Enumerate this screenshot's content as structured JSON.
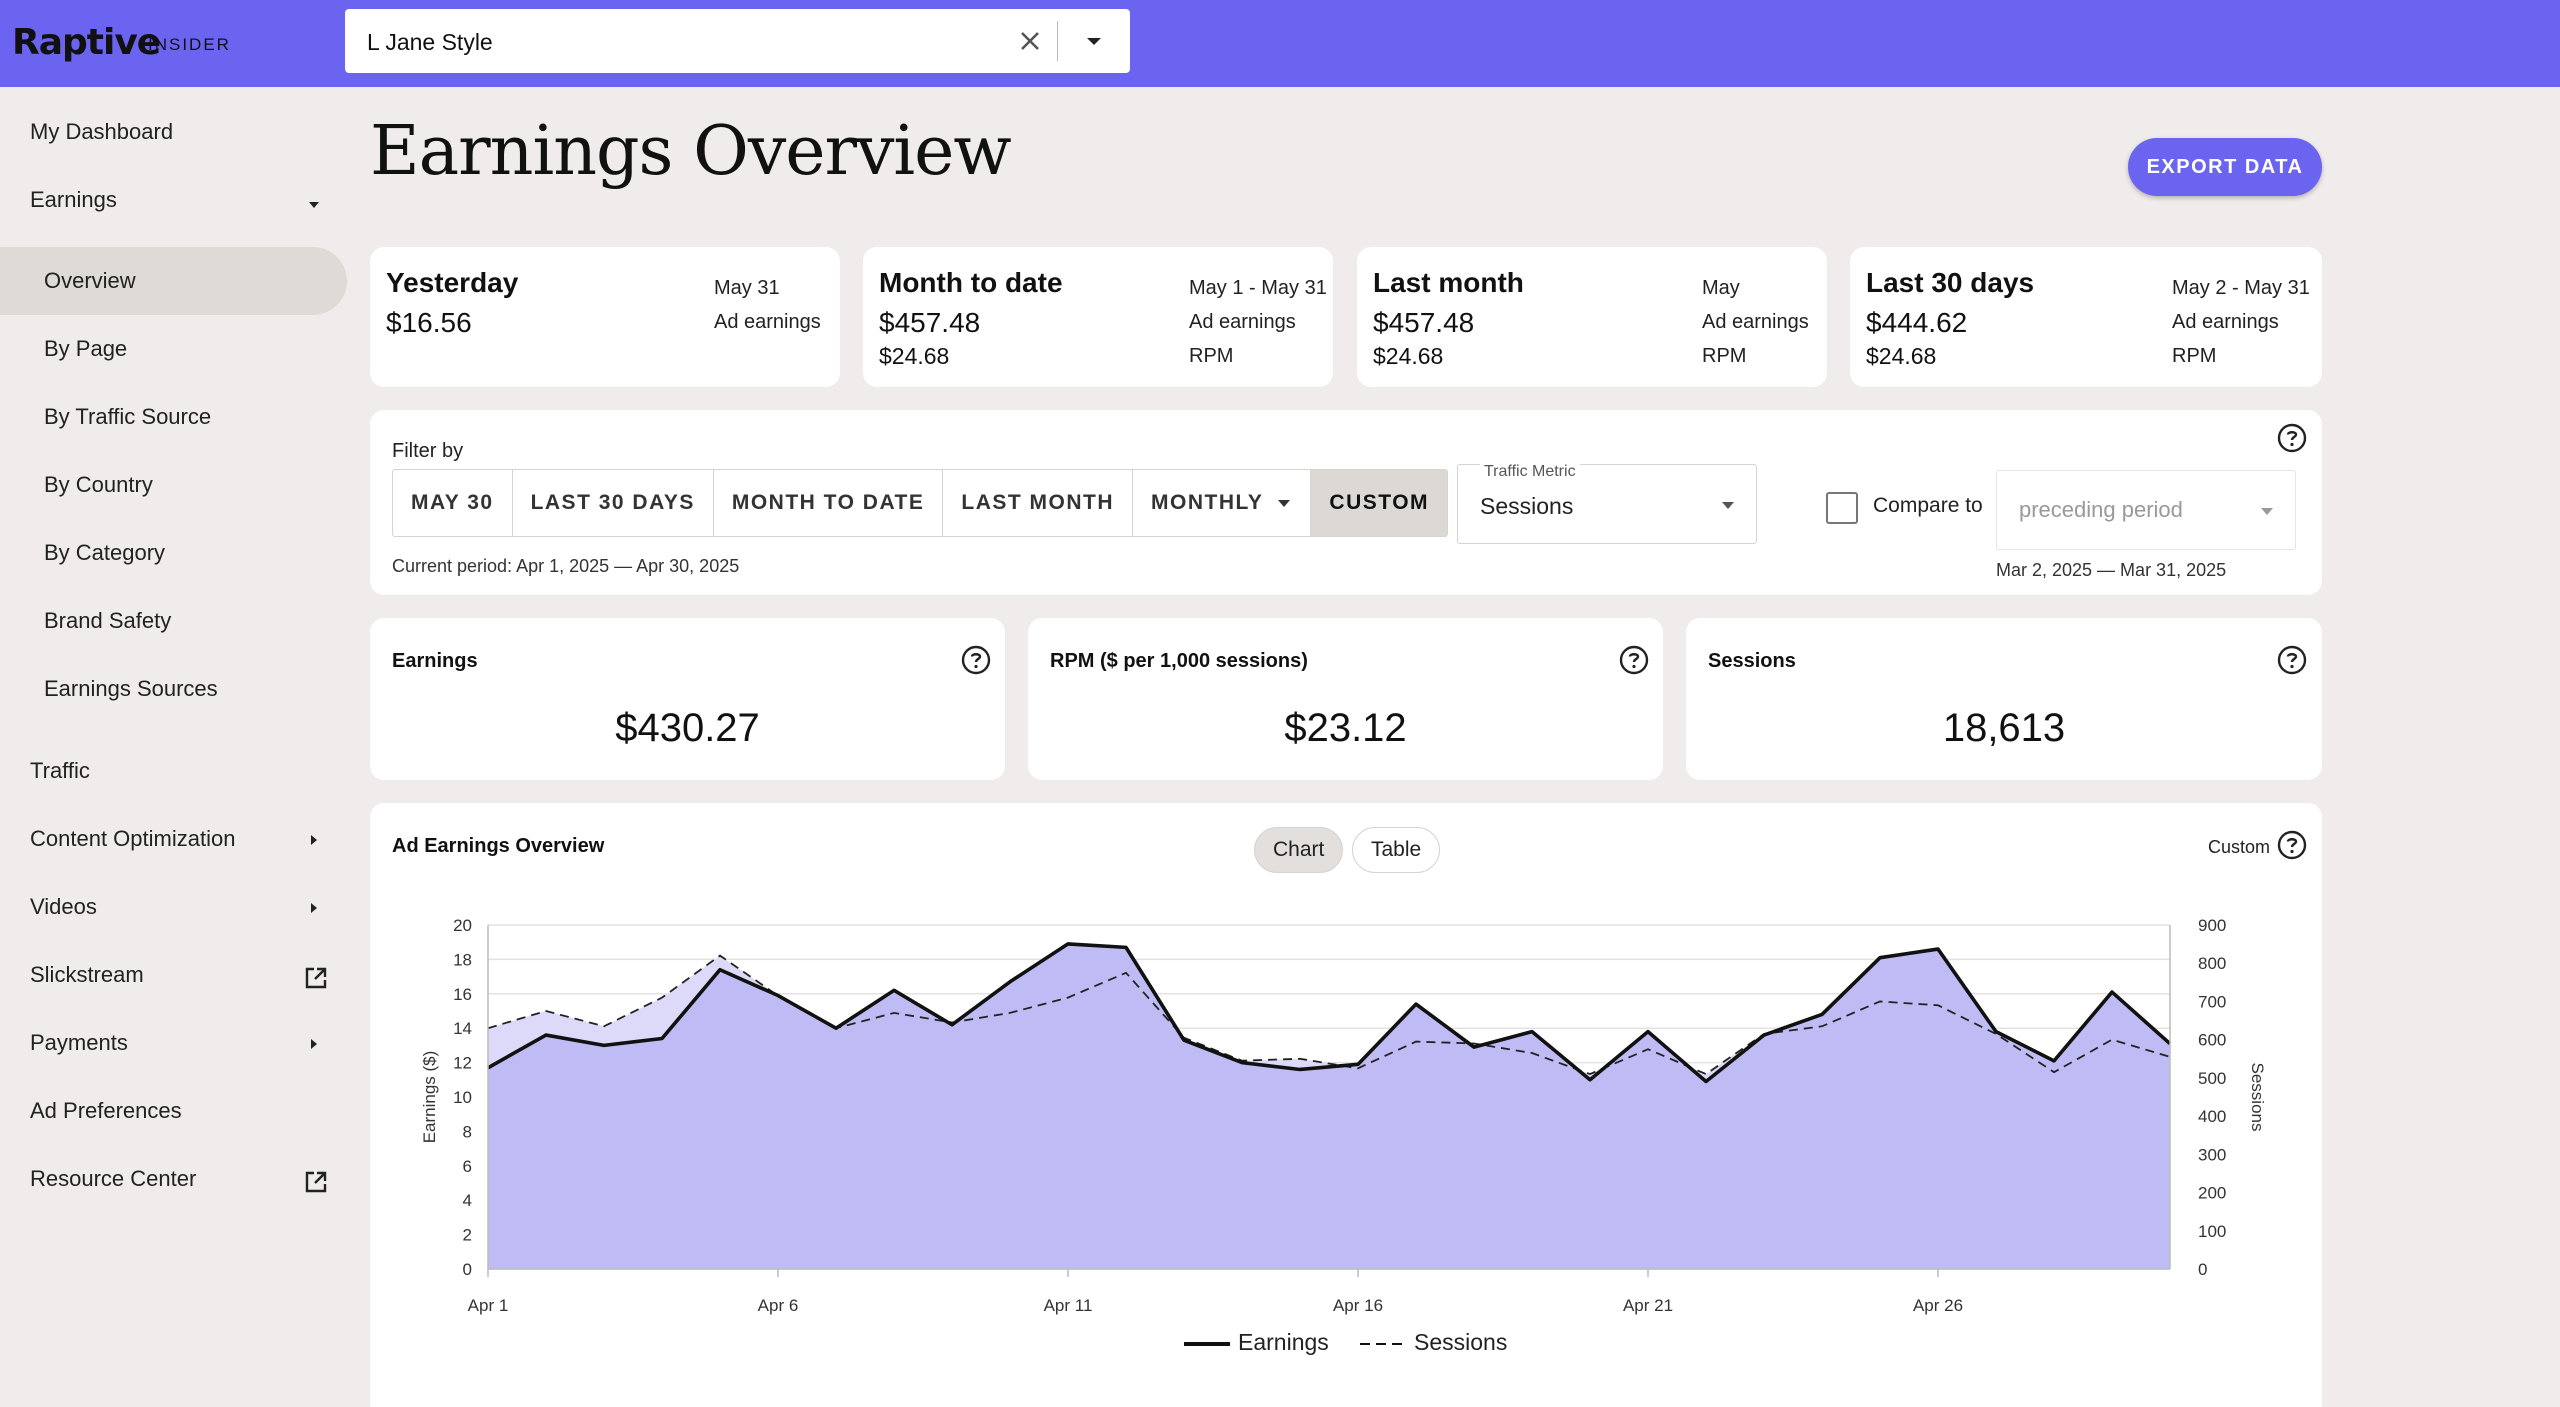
{
  "brand": {
    "name": "Raptive",
    "sub": "INSIDER"
  },
  "site_select": {
    "value": "L Jane Style"
  },
  "sidebar": {
    "items": [
      {
        "label": "My Dashboard"
      },
      {
        "label": "Earnings"
      },
      {
        "label": "Overview"
      },
      {
        "label": "By Page"
      },
      {
        "label": "By Traffic Source"
      },
      {
        "label": "By Country"
      },
      {
        "label": "By Category"
      },
      {
        "label": "Brand Safety"
      },
      {
        "label": "Earnings Sources"
      },
      {
        "label": "Traffic"
      },
      {
        "label": "Content Optimization"
      },
      {
        "label": "Videos"
      },
      {
        "label": "Slickstream"
      },
      {
        "label": "Payments"
      },
      {
        "label": "Ad Preferences"
      },
      {
        "label": "Resource Center"
      }
    ]
  },
  "page": {
    "title": "Earnings Overview",
    "export_label": "EXPORT DATA"
  },
  "summary": [
    {
      "title": "Yesterday",
      "date": "May 31",
      "earnings": "$16.56",
      "earnings_label": "Ad earnings",
      "rpm": "",
      "rpm_label": ""
    },
    {
      "title": "Month to date",
      "date": "May 1 - May 31",
      "earnings": "$457.48",
      "earnings_label": "Ad earnings",
      "rpm": "$24.68",
      "rpm_label": "RPM"
    },
    {
      "title": "Last month",
      "date": "May",
      "earnings": "$457.48",
      "earnings_label": "Ad earnings",
      "rpm": "$24.68",
      "rpm_label": "RPM"
    },
    {
      "title": "Last 30 days",
      "date": "May 2 - May 31",
      "earnings": "$444.62",
      "earnings_label": "Ad earnings",
      "rpm": "$24.68",
      "rpm_label": "RPM"
    }
  ],
  "filter": {
    "label": "Filter by",
    "options": [
      "MAY 30",
      "LAST 30 DAYS",
      "MONTH TO DATE",
      "LAST MONTH",
      "MONTHLY",
      "CUSTOM"
    ],
    "selected": "CUSTOM",
    "current_period": "Current period: Apr 1, 2025 — Apr 30, 2025",
    "traffic_metric_label": "Traffic Metric",
    "traffic_metric_value": "Sessions",
    "compare_label": "Compare to",
    "compare_value": "preceding period",
    "compare_dates": "Mar 2, 2025 — Mar 31, 2025"
  },
  "kpis": [
    {
      "label": "Earnings",
      "value": "$430.27"
    },
    {
      "label": "RPM ($ per 1,000 sessions)",
      "value": "$23.12"
    },
    {
      "label": "Sessions",
      "value": "18,613"
    }
  ],
  "chart_panel": {
    "title": "Ad Earnings Overview",
    "view_chart": "Chart",
    "view_table": "Table",
    "range_label": "Custom"
  },
  "colors": {
    "accent": "#6a64f1",
    "area_earnings": "#bfbcf5",
    "area_sessions": "#dcdaf8"
  },
  "chart_data": {
    "type": "line",
    "x": [
      "Apr 1",
      "Apr 2",
      "Apr 3",
      "Apr 4",
      "Apr 5",
      "Apr 6",
      "Apr 7",
      "Apr 8",
      "Apr 9",
      "Apr 10",
      "Apr 11",
      "Apr 12",
      "Apr 13",
      "Apr 14",
      "Apr 15",
      "Apr 16",
      "Apr 17",
      "Apr 18",
      "Apr 19",
      "Apr 20",
      "Apr 21",
      "Apr 22",
      "Apr 23",
      "Apr 24",
      "Apr 25",
      "Apr 26",
      "Apr 27",
      "Apr 28",
      "Apr 29",
      "Apr 30"
    ],
    "x_ticks": [
      "Apr 1",
      "Apr 6",
      "Apr 11",
      "Apr 16",
      "Apr 21",
      "Apr 26"
    ],
    "series": [
      {
        "name": "Earnings",
        "axis": "left",
        "style": "solid",
        "values": [
          11.7,
          13.6,
          13.0,
          13.4,
          17.4,
          15.9,
          14.0,
          16.2,
          14.2,
          16.7,
          18.9,
          18.7,
          13.3,
          12.0,
          11.6,
          11.9,
          15.4,
          12.9,
          13.8,
          11.0,
          13.8,
          10.9,
          13.6,
          14.8,
          18.1,
          18.6,
          13.8,
          12.1,
          16.1,
          13.1
        ]
      },
      {
        "name": "Sessions",
        "axis": "right",
        "style": "dashed",
        "values": [
          630,
          675,
          635,
          710,
          820,
          715,
          630,
          670,
          645,
          670,
          710,
          775,
          605,
          545,
          550,
          525,
          595,
          590,
          565,
          510,
          575,
          510,
          615,
          635,
          700,
          690,
          615,
          515,
          600,
          555
        ]
      }
    ],
    "ylabel": "Earnings ($)",
    "y2label": "Sessions",
    "ylim": [
      0,
      20
    ],
    "y_ticks": [
      0,
      2,
      4,
      6,
      8,
      10,
      12,
      14,
      16,
      18,
      20
    ],
    "y2lim": [
      0,
      900
    ],
    "y2_ticks": [
      0,
      100,
      200,
      300,
      400,
      500,
      600,
      700,
      800,
      900
    ],
    "grid": true,
    "legend": "bottom"
  }
}
